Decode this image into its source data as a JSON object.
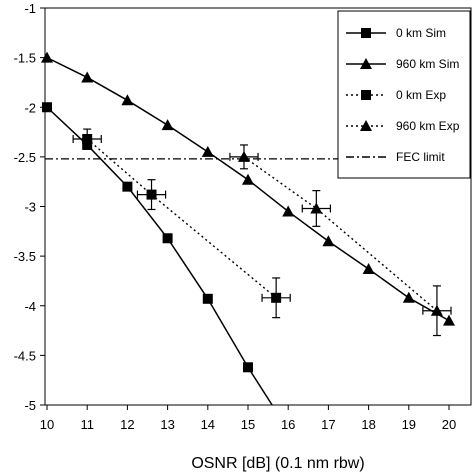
{
  "chart_data": {
    "type": "line",
    "title": "",
    "xlabel": "OSNR [dB] (0.1 nm rbw)",
    "ylabel": "",
    "xlim": [
      10,
      20.5
    ],
    "ylim": [
      -5,
      -1
    ],
    "xticks": [
      10,
      11,
      12,
      13,
      14,
      15,
      16,
      17,
      18,
      19,
      20
    ],
    "yticks": [
      -1,
      -1.5,
      -2,
      -2.5,
      -3,
      -3.5,
      -4,
      -4.5,
      -5
    ],
    "grid": false,
    "legend_position": "top-right",
    "series": [
      {
        "name": "0 km Sim",
        "marker": "square",
        "line": "solid",
        "x": [
          10,
          11,
          12,
          13,
          14,
          15,
          15.6
        ],
        "y": [
          -2.0,
          -2.38,
          -2.8,
          -3.32,
          -3.93,
          -4.62,
          -5.0
        ]
      },
      {
        "name": "960 km Sim",
        "marker": "triangle",
        "line": "solid",
        "x": [
          10,
          11,
          12,
          13,
          14,
          15,
          16,
          17,
          18,
          19,
          20
        ],
        "y": [
          -1.5,
          -1.7,
          -1.93,
          -2.18,
          -2.45,
          -2.73,
          -3.05,
          -3.35,
          -3.63,
          -3.92,
          -4.15
        ]
      },
      {
        "name": "0 km Exp",
        "marker": "square",
        "line": "dotted",
        "x": [
          11,
          12.6,
          15.7
        ],
        "y": [
          -2.32,
          -2.88,
          -3.92
        ],
        "xerr": [
          0.35,
          0.35,
          0.35
        ],
        "yerr": [
          0.1,
          0.15,
          0.2
        ]
      },
      {
        "name": "960 km Exp",
        "marker": "triangle",
        "line": "dotted",
        "x": [
          14.9,
          16.7,
          19.7
        ],
        "y": [
          -2.5,
          -3.02,
          -4.05
        ],
        "xerr": [
          0.35,
          0.35,
          0.35
        ],
        "yerr": [
          0.12,
          0.18,
          0.25
        ]
      }
    ],
    "reference_lines": [
      {
        "name": "FEC limit",
        "y": -2.52,
        "line": "dash-dot"
      }
    ]
  }
}
